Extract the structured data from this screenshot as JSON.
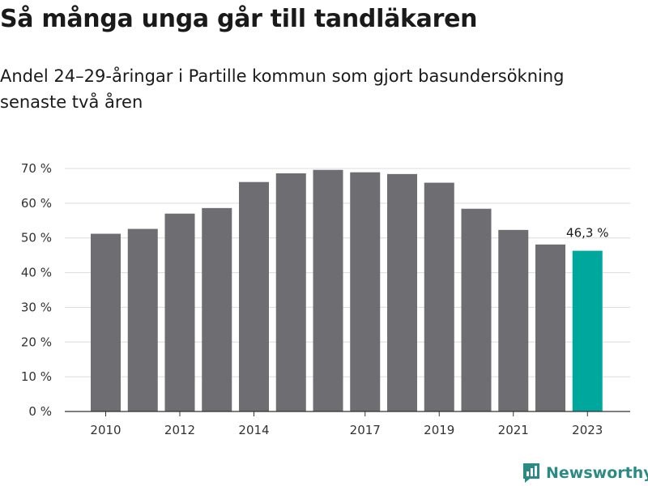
{
  "title": "Så många unga går till tandläkaren",
  "subtitle": "Andel 24–29-åringar i Partille kommun som gjort basundersökning senaste två åren",
  "brand": {
    "name": "Newsworthy",
    "icon": "newsworthy-logo-icon",
    "color": "#2b8a84"
  },
  "chart_data": {
    "type": "bar",
    "title": "Så många unga går till tandläkaren",
    "subtitle": "Andel 24–29-åringar i Partille kommun som gjort basundersökning senaste två åren",
    "categories": [
      "2010",
      "2011",
      "2012",
      "2013",
      "2014",
      "2015",
      "2016",
      "2017",
      "2018",
      "2019",
      "2020",
      "2021",
      "2022",
      "2023"
    ],
    "values": [
      51.2,
      52.6,
      57.0,
      58.6,
      66.1,
      68.6,
      69.6,
      68.9,
      68.4,
      65.9,
      58.4,
      52.3,
      48.1,
      46.3
    ],
    "x_tick_labels": [
      "2010",
      "",
      "2012",
      "",
      "2014",
      "",
      "",
      "2017",
      "",
      "2019",
      "",
      "2021",
      "",
      "2023"
    ],
    "y_tick_labels": [
      "0 %",
      "10 %",
      "20 %",
      "30 %",
      "40 %",
      "50 %",
      "60 %",
      "70 %"
    ],
    "y_ticks": [
      0,
      10,
      20,
      30,
      40,
      50,
      60,
      70
    ],
    "ylim": [
      0,
      70
    ],
    "grid": true,
    "highlight_index": 13,
    "annotation": "46,3 %",
    "colors": {
      "bar": "#6d6d72",
      "highlight": "#00a79d",
      "grid": "#dcdcdc",
      "axis": "#333333"
    }
  }
}
